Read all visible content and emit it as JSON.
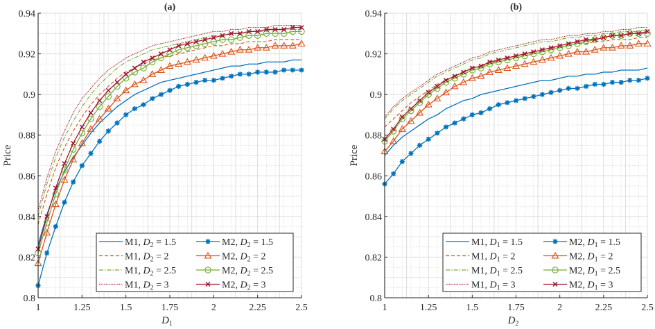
{
  "chart_data": [
    {
      "type": "line",
      "title": "(a)",
      "xlabel": "D",
      "xlabel_sub": "1",
      "ylabel": "Price",
      "xlim": [
        1,
        2.5
      ],
      "ylim": [
        0.8,
        0.94
      ],
      "xticks": [
        1,
        1.25,
        1.5,
        1.75,
        2,
        2.25,
        2.5
      ],
      "xtick_labels": [
        "1",
        "1.25",
        "1.5",
        "1.75",
        "2",
        "2.25",
        "2.5"
      ],
      "yticks": [
        0.8,
        0.82,
        0.84,
        0.86,
        0.88,
        0.9,
        0.92,
        0.94
      ],
      "ytick_labels": [
        "0.8",
        "0.82",
        "0.84",
        "0.86",
        "0.88",
        "0.9",
        "0.92",
        "0.94"
      ],
      "grid": true,
      "minor_grid": true,
      "legend_position": "bottom-right",
      "legend_columns": 2,
      "x": [
        1.0,
        1.05,
        1.1,
        1.15,
        1.2,
        1.25,
        1.3,
        1.35,
        1.4,
        1.45,
        1.5,
        1.55,
        1.6,
        1.65,
        1.7,
        1.75,
        1.8,
        1.85,
        1.9,
        1.95,
        2.0,
        2.05,
        2.1,
        2.15,
        2.2,
        2.25,
        2.3,
        2.35,
        2.4,
        2.45,
        2.5
      ],
      "series": [
        {
          "name": "M1, D2 = 1.5",
          "model": "M1",
          "param": "D",
          "param_sub": "2",
          "param_value": "1.5",
          "color": "#0072BD",
          "dash": "solid",
          "marker": "none",
          "values": [
            0.826,
            0.841,
            0.853,
            0.862,
            0.869,
            0.875,
            0.881,
            0.886,
            0.89,
            0.894,
            0.897,
            0.9,
            0.902,
            0.904,
            0.906,
            0.907,
            0.908,
            0.909,
            0.91,
            0.911,
            0.912,
            0.913,
            0.914,
            0.914,
            0.915,
            0.915,
            0.916,
            0.916,
            0.916,
            0.917,
            0.917
          ]
        },
        {
          "name": "M2, D2 = 1.5",
          "model": "M2",
          "param": "D",
          "param_sub": "2",
          "param_value": "1.5",
          "color": "#0072BD",
          "dash": "solid",
          "marker": "star",
          "values": [
            0.806,
            0.822,
            0.835,
            0.847,
            0.857,
            0.865,
            0.871,
            0.877,
            0.882,
            0.886,
            0.89,
            0.893,
            0.895,
            0.898,
            0.9,
            0.902,
            0.904,
            0.905,
            0.906,
            0.907,
            0.907,
            0.908,
            0.909,
            0.91,
            0.91,
            0.911,
            0.911,
            0.911,
            0.912,
            0.912,
            0.912
          ]
        },
        {
          "name": "M1, D2 = 2",
          "model": "M1",
          "param": "D",
          "param_sub": "2",
          "param_value": "2",
          "color": "#D95319",
          "dash": "dashed",
          "marker": "none",
          "values": [
            0.836,
            0.851,
            0.864,
            0.874,
            0.882,
            0.889,
            0.895,
            0.9,
            0.904,
            0.908,
            0.911,
            0.913,
            0.915,
            0.917,
            0.918,
            0.919,
            0.92,
            0.921,
            0.922,
            0.923,
            0.924,
            0.924,
            0.925,
            0.925,
            0.926,
            0.926,
            0.926,
            0.927,
            0.927,
            0.927,
            0.927
          ]
        },
        {
          "name": "M2, D2 = 2",
          "model": "M2",
          "param": "D",
          "param_sub": "2",
          "param_value": "2",
          "color": "#D95319",
          "dash": "solid",
          "marker": "triangle",
          "values": [
            0.817,
            0.832,
            0.846,
            0.858,
            0.868,
            0.876,
            0.883,
            0.888,
            0.893,
            0.898,
            0.902,
            0.905,
            0.907,
            0.91,
            0.912,
            0.914,
            0.915,
            0.916,
            0.917,
            0.918,
            0.919,
            0.92,
            0.921,
            0.922,
            0.922,
            0.923,
            0.923,
            0.924,
            0.924,
            0.924,
            0.925
          ]
        },
        {
          "name": "M1, D2 = 2.5",
          "model": "M1",
          "param": "D",
          "param_sub": "2",
          "param_value": "2.5",
          "color": "#77AC30",
          "dash": "dashdot",
          "marker": "none",
          "values": [
            0.84,
            0.856,
            0.869,
            0.879,
            0.887,
            0.894,
            0.9,
            0.905,
            0.909,
            0.913,
            0.916,
            0.918,
            0.92,
            0.922,
            0.923,
            0.924,
            0.925,
            0.926,
            0.927,
            0.928,
            0.929,
            0.929,
            0.93,
            0.93,
            0.931,
            0.931,
            0.931,
            0.932,
            0.932,
            0.932,
            0.932
          ]
        },
        {
          "name": "M2, D2 = 2.5",
          "model": "M2",
          "param": "D",
          "param_sub": "2",
          "param_value": "2.5",
          "color": "#77AC30",
          "dash": "solid",
          "marker": "circle",
          "values": [
            0.822,
            0.837,
            0.851,
            0.863,
            0.873,
            0.881,
            0.888,
            0.894,
            0.899,
            0.904,
            0.908,
            0.911,
            0.913,
            0.916,
            0.918,
            0.92,
            0.922,
            0.923,
            0.924,
            0.925,
            0.926,
            0.927,
            0.927,
            0.928,
            0.929,
            0.929,
            0.93,
            0.93,
            0.93,
            0.931,
            0.931
          ]
        },
        {
          "name": "M1, D2 = 3",
          "model": "M1",
          "param": "D",
          "param_sub": "2",
          "param_value": "3",
          "color": "#A2142F",
          "dash": "dotted",
          "marker": "none",
          "values": [
            0.843,
            0.859,
            0.872,
            0.882,
            0.891,
            0.898,
            0.903,
            0.908,
            0.912,
            0.915,
            0.918,
            0.92,
            0.922,
            0.924,
            0.925,
            0.926,
            0.927,
            0.928,
            0.929,
            0.93,
            0.931,
            0.931,
            0.932,
            0.932,
            0.933,
            0.933,
            0.933,
            0.934,
            0.934,
            0.934,
            0.934
          ]
        },
        {
          "name": "M2, D2 = 3",
          "model": "M2",
          "param": "D",
          "param_sub": "2",
          "param_value": "3",
          "color": "#A2142F",
          "dash": "solid",
          "marker": "x",
          "values": [
            0.824,
            0.84,
            0.854,
            0.866,
            0.876,
            0.884,
            0.891,
            0.897,
            0.902,
            0.906,
            0.91,
            0.913,
            0.916,
            0.918,
            0.92,
            0.922,
            0.924,
            0.925,
            0.926,
            0.927,
            0.928,
            0.929,
            0.93,
            0.93,
            0.931,
            0.931,
            0.932,
            0.932,
            0.932,
            0.933,
            0.933
          ]
        }
      ]
    },
    {
      "type": "line",
      "title": "(b)",
      "xlabel": "D",
      "xlabel_sub": "2",
      "ylabel": "Price",
      "xlim": [
        1,
        2.5
      ],
      "ylim": [
        0.8,
        0.94
      ],
      "xticks": [
        1,
        1.25,
        1.5,
        1.75,
        2,
        2.25,
        2.5
      ],
      "xtick_labels": [
        "1",
        "1.25",
        "1.5",
        "1.75",
        "2",
        "2.25",
        "2.5"
      ],
      "yticks": [
        0.8,
        0.82,
        0.84,
        0.86,
        0.88,
        0.9,
        0.92,
        0.94
      ],
      "ytick_labels": [
        "0.8",
        "0.82",
        "0.84",
        "0.86",
        "0.88",
        "0.9",
        "0.92",
        "0.94"
      ],
      "grid": true,
      "minor_grid": true,
      "legend_position": "bottom-right",
      "legend_columns": 2,
      "x": [
        1.0,
        1.05,
        1.1,
        1.15,
        1.2,
        1.25,
        1.3,
        1.35,
        1.4,
        1.45,
        1.5,
        1.55,
        1.6,
        1.65,
        1.7,
        1.75,
        1.8,
        1.85,
        1.9,
        1.95,
        2.0,
        2.05,
        2.1,
        2.15,
        2.2,
        2.25,
        2.3,
        2.35,
        2.4,
        2.45,
        2.5
      ],
      "series": [
        {
          "name": "M1, D1 = 1.5",
          "model": "M1",
          "param": "D",
          "param_sub": "1",
          "param_value": "1.5",
          "color": "#0072BD",
          "dash": "solid",
          "marker": "none",
          "values": [
            0.87,
            0.875,
            0.879,
            0.882,
            0.885,
            0.888,
            0.89,
            0.893,
            0.895,
            0.897,
            0.898,
            0.9,
            0.901,
            0.902,
            0.903,
            0.904,
            0.905,
            0.906,
            0.907,
            0.907,
            0.908,
            0.909,
            0.909,
            0.91,
            0.91,
            0.911,
            0.911,
            0.912,
            0.912,
            0.912,
            0.913
          ]
        },
        {
          "name": "M2, D1 = 1.5",
          "model": "M2",
          "param": "D",
          "param_sub": "1",
          "param_value": "1.5",
          "color": "#0072BD",
          "dash": "solid",
          "marker": "star",
          "values": [
            0.856,
            0.861,
            0.867,
            0.871,
            0.875,
            0.878,
            0.881,
            0.884,
            0.886,
            0.888,
            0.89,
            0.891,
            0.893,
            0.895,
            0.896,
            0.897,
            0.898,
            0.899,
            0.9,
            0.901,
            0.902,
            0.903,
            0.903,
            0.904,
            0.905,
            0.905,
            0.906,
            0.906,
            0.907,
            0.907,
            0.908
          ]
        },
        {
          "name": "M1, D1 = 2",
          "model": "M1",
          "param": "D",
          "param_sub": "1",
          "param_value": "2",
          "color": "#D95319",
          "dash": "dashed",
          "marker": "none",
          "values": [
            0.884,
            0.888,
            0.892,
            0.896,
            0.899,
            0.902,
            0.905,
            0.907,
            0.909,
            0.911,
            0.913,
            0.914,
            0.915,
            0.917,
            0.918,
            0.919,
            0.92,
            0.921,
            0.922,
            0.923,
            0.923,
            0.924,
            0.925,
            0.925,
            0.926,
            0.926,
            0.927,
            0.927,
            0.927,
            0.928,
            0.928
          ]
        },
        {
          "name": "M2, D1 = 2",
          "model": "M2",
          "param": "D",
          "param_sub": "1",
          "param_value": "2",
          "color": "#D95319",
          "dash": "solid",
          "marker": "triangle",
          "values": [
            0.872,
            0.877,
            0.883,
            0.887,
            0.891,
            0.895,
            0.898,
            0.901,
            0.904,
            0.906,
            0.908,
            0.909,
            0.911,
            0.912,
            0.913,
            0.914,
            0.915,
            0.916,
            0.917,
            0.918,
            0.919,
            0.92,
            0.921,
            0.921,
            0.922,
            0.923,
            0.923,
            0.924,
            0.924,
            0.925,
            0.925
          ]
        },
        {
          "name": "M1, D1 = 2.5",
          "model": "M1",
          "param": "D",
          "param_sub": "1",
          "param_value": "2.5",
          "color": "#77AC30",
          "dash": "dashdot",
          "marker": "none",
          "values": [
            0.888,
            0.893,
            0.897,
            0.9,
            0.903,
            0.906,
            0.909,
            0.911,
            0.913,
            0.915,
            0.917,
            0.918,
            0.92,
            0.921,
            0.922,
            0.923,
            0.924,
            0.925,
            0.926,
            0.926,
            0.927,
            0.928,
            0.928,
            0.929,
            0.929,
            0.93,
            0.93,
            0.931,
            0.931,
            0.931,
            0.932
          ]
        },
        {
          "name": "M2, D1 = 2.5",
          "model": "M2",
          "param": "D",
          "param_sub": "1",
          "param_value": "2.5",
          "color": "#77AC30",
          "dash": "solid",
          "marker": "circle",
          "values": [
            0.877,
            0.882,
            0.888,
            0.892,
            0.896,
            0.9,
            0.903,
            0.906,
            0.908,
            0.91,
            0.912,
            0.913,
            0.915,
            0.916,
            0.917,
            0.918,
            0.919,
            0.92,
            0.921,
            0.922,
            0.923,
            0.924,
            0.925,
            0.926,
            0.927,
            0.928,
            0.929,
            0.929,
            0.93,
            0.93,
            0.93
          ]
        },
        {
          "name": "M1, D1 = 3",
          "model": "M1",
          "param": "D",
          "param_sub": "1",
          "param_value": "3",
          "color": "#A2142F",
          "dash": "dotted",
          "marker": "none",
          "values": [
            0.889,
            0.894,
            0.898,
            0.901,
            0.904,
            0.907,
            0.91,
            0.912,
            0.914,
            0.916,
            0.918,
            0.919,
            0.921,
            0.922,
            0.923,
            0.924,
            0.925,
            0.926,
            0.927,
            0.927,
            0.928,
            0.929,
            0.929,
            0.93,
            0.93,
            0.931,
            0.931,
            0.932,
            0.932,
            0.933,
            0.933
          ]
        },
        {
          "name": "M2, D1 = 3",
          "model": "M2",
          "param": "D",
          "param_sub": "1",
          "param_value": "3",
          "color": "#A2142F",
          "dash": "solid",
          "marker": "x",
          "values": [
            0.878,
            0.883,
            0.889,
            0.893,
            0.897,
            0.901,
            0.904,
            0.907,
            0.909,
            0.911,
            0.913,
            0.914,
            0.916,
            0.917,
            0.918,
            0.919,
            0.92,
            0.921,
            0.922,
            0.923,
            0.924,
            0.925,
            0.926,
            0.927,
            0.927,
            0.928,
            0.929,
            0.929,
            0.93,
            0.93,
            0.931
          ]
        }
      ]
    }
  ]
}
